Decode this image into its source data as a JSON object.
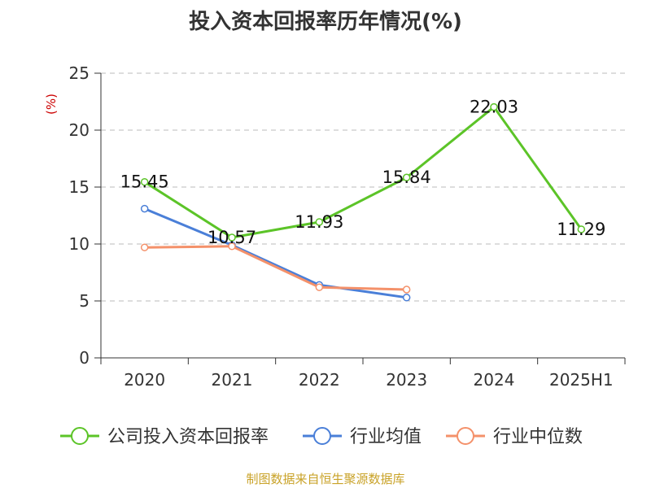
{
  "title": "投入资本回报率历年情况(%)",
  "source": "制图数据来自恒生聚源数据库",
  "chart_data": {
    "type": "line",
    "title": "投入资本回报率历年情况(%)",
    "ylabel": "(%)",
    "categories": [
      "2020",
      "2021",
      "2022",
      "2023",
      "2024",
      "2025H1"
    ],
    "ylim": [
      0,
      25
    ],
    "yticks": [
      0,
      5,
      10,
      15,
      20,
      25
    ],
    "grid": true,
    "legend_position": "bottom",
    "series": [
      {
        "name": "公司投入资本回报率",
        "color": "#5cc428",
        "values": [
          15.45,
          10.57,
          11.93,
          15.84,
          22.03,
          11.29
        ],
        "labels": [
          "15.45",
          "10.57",
          "11.93",
          "15.84",
          "22.03",
          "11.29"
        ]
      },
      {
        "name": "行业均值",
        "color": "#4a7fd8",
        "values": [
          13.1,
          9.9,
          6.4,
          5.3,
          null,
          null
        ]
      },
      {
        "name": "行业中位数",
        "color": "#f4916a",
        "values": [
          9.7,
          9.8,
          6.2,
          6.0,
          null,
          null
        ]
      }
    ]
  }
}
